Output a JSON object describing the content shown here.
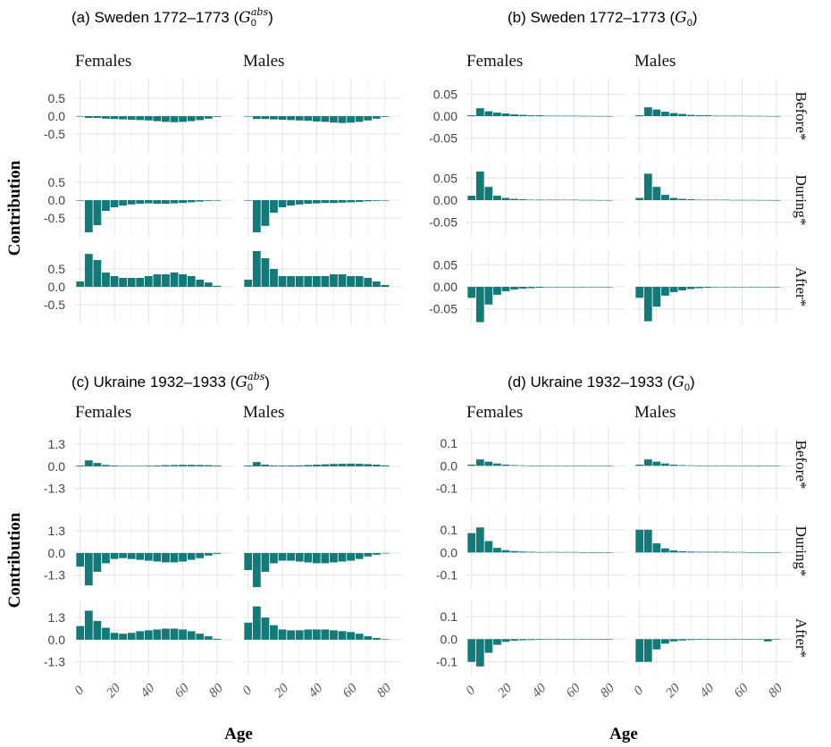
{
  "colors": {
    "bar": "#127a78",
    "grid": "#e4e4e4",
    "panel_bg": "#ffffff"
  },
  "labels": {
    "ylabel": "Contribution",
    "xlabel": "Age",
    "females": "Females",
    "males": "Males",
    "period_before": "Before*",
    "period_during": "During*",
    "period_after": "After*"
  },
  "panels": [
    {
      "prefix": "(a) Sweden 1772–1773 (",
      "g": "G",
      "sub": "0",
      "sup": "abs",
      "suffix": ")"
    },
    {
      "prefix": "(b) Sweden 1772–1773 (",
      "g": "G",
      "sub": "0",
      "sup": "",
      "suffix": ")"
    },
    {
      "prefix": "(c) Ukraine 1932–1933 (",
      "g": "G",
      "sub": "0",
      "sup": "abs",
      "suffix": ")"
    },
    {
      "prefix": "(d) Ukraine 1932–1933 (",
      "g": "G",
      "sub": "0",
      "sup": "",
      "suffix": ")"
    }
  ],
  "chart_data": [
    {
      "type": "bar",
      "title": "(a) Sweden 1772–1773 (G0abs)",
      "ylabel": "Contribution",
      "xlabel": "Age",
      "x": [
        0,
        5,
        10,
        15,
        20,
        25,
        30,
        35,
        40,
        45,
        50,
        55,
        60,
        65,
        70,
        75,
        80
      ],
      "xticks": [
        "0",
        "20",
        "40",
        "60",
        "80"
      ],
      "xlim": [
        -3,
        90
      ],
      "ylim": [
        -1.05,
        1.05
      ],
      "yticks": [
        0.5,
        0.0,
        -0.5
      ],
      "ytick_labels": [
        "0.5",
        "0.0",
        "-0.5"
      ],
      "facets": [
        {
          "period": "Before*",
          "sex": "Females",
          "values": [
            0,
            -0.05,
            -0.05,
            -0.07,
            -0.08,
            -0.09,
            -0.1,
            -0.11,
            -0.12,
            -0.14,
            -0.16,
            -0.17,
            -0.16,
            -0.14,
            -0.11,
            -0.07,
            -0.02
          ]
        },
        {
          "period": "Before*",
          "sex": "Males",
          "values": [
            0,
            -0.08,
            -0.08,
            -0.09,
            -0.1,
            -0.11,
            -0.12,
            -0.13,
            -0.15,
            -0.16,
            -0.18,
            -0.19,
            -0.18,
            -0.16,
            -0.12,
            -0.07,
            -0.02
          ]
        },
        {
          "period": "During*",
          "sex": "Females",
          "values": [
            0.0,
            -0.9,
            -0.7,
            -0.3,
            -0.2,
            -0.15,
            -0.12,
            -0.1,
            -0.09,
            -0.1,
            -0.1,
            -0.09,
            -0.08,
            -0.06,
            -0.04,
            -0.02,
            0
          ]
        },
        {
          "period": "During*",
          "sex": "Males",
          "values": [
            0.0,
            -0.9,
            -0.72,
            -0.35,
            -0.2,
            -0.15,
            -0.12,
            -0.1,
            -0.09,
            -0.08,
            -0.08,
            -0.07,
            -0.06,
            -0.05,
            -0.03,
            -0.02,
            0
          ]
        },
        {
          "period": "After*",
          "sex": "Females",
          "values": [
            0.15,
            0.92,
            0.75,
            0.4,
            0.3,
            0.25,
            0.25,
            0.25,
            0.3,
            0.35,
            0.35,
            0.4,
            0.35,
            0.3,
            0.2,
            0.12,
            0.03
          ]
        },
        {
          "period": "After*",
          "sex": "Males",
          "values": [
            0.2,
            1.0,
            0.8,
            0.5,
            0.3,
            0.3,
            0.3,
            0.3,
            0.3,
            0.3,
            0.35,
            0.35,
            0.3,
            0.3,
            0.25,
            0.15,
            0.05
          ]
        }
      ]
    },
    {
      "type": "bar",
      "title": "(b) Sweden 1772–1773 (G0)",
      "ylabel": "Contribution",
      "xlabel": "Age",
      "x": [
        0,
        5,
        10,
        15,
        20,
        25,
        30,
        35,
        40,
        45,
        50,
        55,
        60,
        65,
        70,
        75,
        80
      ],
      "xticks": [
        "0",
        "20",
        "40",
        "60",
        "80"
      ],
      "xlim": [
        -3,
        90
      ],
      "ylim": [
        -0.085,
        0.085
      ],
      "yticks": [
        0.05,
        0.0,
        -0.05
      ],
      "ytick_labels": [
        "0.05",
        "0.00",
        "-0.05"
      ],
      "facets": [
        {
          "period": "Before*",
          "sex": "Females",
          "values": [
            0.002,
            0.018,
            0.011,
            0.008,
            0.006,
            0.004,
            0.003,
            0.002,
            0.002,
            0.001,
            0.001,
            0.001,
            0.001,
            0.0005,
            0.0005,
            0.0003,
            0.0002
          ]
        },
        {
          "period": "Before*",
          "sex": "Males",
          "values": [
            0.002,
            0.02,
            0.015,
            0.01,
            0.007,
            0.005,
            0.003,
            0.002,
            0.002,
            0.001,
            0.001,
            0.001,
            0.001,
            0.0005,
            0.0005,
            0.0003,
            0.0002
          ]
        },
        {
          "period": "During*",
          "sex": "Females",
          "values": [
            0.01,
            0.065,
            0.03,
            0.01,
            0.005,
            0.003,
            0.002,
            0.001,
            0.001,
            0.001,
            0.001,
            0.001,
            0.001,
            0.0005,
            0.0005,
            0.0002,
            0.0001
          ]
        },
        {
          "period": "During*",
          "sex": "Males",
          "values": [
            0.005,
            0.06,
            0.03,
            0.012,
            0.005,
            0.003,
            0.002,
            0.001,
            0.001,
            0.001,
            0.001,
            0.0005,
            0.0005,
            0.0005,
            0.0003,
            0.0002,
            0.0001
          ]
        },
        {
          "period": "After*",
          "sex": "Females",
          "values": [
            -0.025,
            -0.08,
            -0.04,
            -0.018,
            -0.01,
            -0.006,
            -0.004,
            -0.003,
            -0.002,
            -0.001,
            -0.001,
            -0.001,
            -0.001,
            -0.0005,
            -0.0005,
            -0.0003,
            -0.0002
          ]
        },
        {
          "period": "After*",
          "sex": "Males",
          "values": [
            -0.025,
            -0.078,
            -0.045,
            -0.02,
            -0.012,
            -0.008,
            -0.005,
            -0.003,
            -0.002,
            -0.001,
            -0.001,
            -0.001,
            -0.001,
            -0.0005,
            -0.0005,
            -0.0003,
            -0.0002
          ]
        }
      ]
    },
    {
      "type": "bar",
      "title": "(c) Ukraine 1932–1933 (G0abs)",
      "ylabel": "Contribution",
      "xlabel": "Age",
      "x": [
        0,
        5,
        10,
        15,
        20,
        25,
        30,
        35,
        40,
        45,
        50,
        55,
        60,
        65,
        70,
        75,
        80
      ],
      "xticks": [
        "0",
        "20",
        "40",
        "60",
        "80"
      ],
      "xlim": [
        -3,
        90
      ],
      "ylim": [
        -2.1,
        2.3
      ],
      "yticks": [
        1.3,
        0.0,
        -1.3
      ],
      "ytick_labels": [
        "1.3",
        "0.0",
        "-1.3"
      ],
      "facets": [
        {
          "period": "Before*",
          "sex": "Females",
          "values": [
            0.05,
            0.35,
            0.2,
            0.08,
            0.05,
            0.03,
            0.03,
            0.03,
            0.04,
            0.05,
            0.07,
            0.08,
            0.09,
            0.09,
            0.08,
            0.07,
            0.05
          ]
        },
        {
          "period": "Before*",
          "sex": "Males",
          "values": [
            0.05,
            0.25,
            0.1,
            0.05,
            0.05,
            0.05,
            0.06,
            0.08,
            0.1,
            0.12,
            0.14,
            0.15,
            0.16,
            0.15,
            0.13,
            0.1,
            0.06
          ]
        },
        {
          "period": "During*",
          "sex": "Females",
          "values": [
            -0.8,
            -1.9,
            -1.1,
            -0.6,
            -0.35,
            -0.3,
            -0.35,
            -0.4,
            -0.45,
            -0.5,
            -0.55,
            -0.55,
            -0.5,
            -0.4,
            -0.3,
            -0.15,
            -0.05
          ]
        },
        {
          "period": "During*",
          "sex": "Males",
          "values": [
            -1.0,
            -2.0,
            -1.1,
            -0.6,
            -0.45,
            -0.45,
            -0.5,
            -0.55,
            -0.6,
            -0.6,
            -0.55,
            -0.5,
            -0.45,
            -0.35,
            -0.2,
            -0.1,
            -0.03
          ]
        },
        {
          "period": "After*",
          "sex": "Females",
          "values": [
            0.8,
            1.7,
            1.1,
            0.7,
            0.4,
            0.35,
            0.4,
            0.5,
            0.55,
            0.6,
            0.65,
            0.65,
            0.6,
            0.5,
            0.35,
            0.2,
            0.05
          ]
        },
        {
          "period": "After*",
          "sex": "Males",
          "values": [
            1.0,
            1.95,
            1.3,
            0.85,
            0.6,
            0.55,
            0.55,
            0.6,
            0.6,
            0.6,
            0.55,
            0.5,
            0.45,
            0.35,
            0.2,
            0.1,
            0.03
          ]
        }
      ]
    },
    {
      "type": "bar",
      "title": "(d) Ukraine 1932–1933 (G0)",
      "ylabel": "Contribution",
      "xlabel": "Age",
      "x": [
        0,
        5,
        10,
        15,
        20,
        25,
        30,
        35,
        40,
        45,
        50,
        55,
        60,
        65,
        70,
        75,
        80
      ],
      "xticks": [
        "0",
        "20",
        "40",
        "60",
        "80"
      ],
      "xlim": [
        -3,
        90
      ],
      "ylim": [
        -0.16,
        0.17
      ],
      "yticks": [
        0.1,
        0.0,
        -0.1
      ],
      "ytick_labels": [
        "0.1",
        "0.0",
        "-0.1"
      ],
      "facets": [
        {
          "period": "Before*",
          "sex": "Females",
          "values": [
            0.005,
            0.028,
            0.018,
            0.01,
            0.005,
            0.003,
            0.002,
            0.001,
            0.001,
            0.001,
            0.001,
            0.0005,
            0.0005,
            0.0005,
            0.0003,
            0.0002,
            0.0001
          ]
        },
        {
          "period": "Before*",
          "sex": "Males",
          "values": [
            0.005,
            0.028,
            0.018,
            0.01,
            0.005,
            0.003,
            0.002,
            0.001,
            0.001,
            0.001,
            0.001,
            0.0005,
            0.0005,
            0.0005,
            0.0003,
            0.0002,
            0.0001
          ]
        },
        {
          "period": "During*",
          "sex": "Females",
          "values": [
            0.085,
            0.11,
            0.05,
            0.02,
            0.01,
            0.006,
            0.004,
            0.003,
            0.002,
            0.002,
            0.002,
            0.002,
            0.002,
            0.001,
            0.001,
            0.0005,
            0.0002
          ]
        },
        {
          "period": "During*",
          "sex": "Males",
          "values": [
            0.1,
            0.1,
            0.04,
            0.018,
            0.009,
            0.005,
            0.004,
            0.003,
            0.003,
            0.003,
            0.003,
            0.002,
            0.002,
            0.001,
            0.001,
            0.0005,
            0.0002
          ]
        },
        {
          "period": "After*",
          "sex": "Females",
          "values": [
            -0.1,
            -0.12,
            -0.06,
            -0.025,
            -0.012,
            -0.007,
            -0.005,
            -0.004,
            -0.003,
            -0.002,
            -0.002,
            -0.002,
            -0.002,
            -0.001,
            -0.001,
            -0.0005,
            -0.0002
          ]
        },
        {
          "period": "After*",
          "sex": "Males",
          "values": [
            -0.1,
            -0.1,
            -0.045,
            -0.02,
            -0.01,
            -0.006,
            -0.004,
            -0.003,
            -0.003,
            -0.002,
            -0.002,
            -0.002,
            -0.002,
            -0.001,
            -0.001,
            -0.01,
            -0.0002
          ]
        }
      ]
    }
  ]
}
